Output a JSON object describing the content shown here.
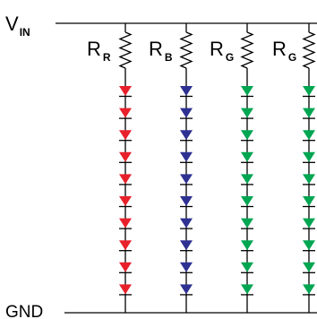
{
  "diagram": {
    "vin_label": {
      "main": "V",
      "sub": "IN"
    },
    "gnd_label": "GND",
    "colors": {
      "wire": "#000000",
      "red": "#e8202a",
      "blue": "#2e3192",
      "green": "#00a651"
    },
    "strings": [
      {
        "resistor_label": {
          "main": "R",
          "sub": "R"
        },
        "led_color": "red",
        "led_count": 10
      },
      {
        "resistor_label": {
          "main": "R",
          "sub": "B"
        },
        "led_color": "blue",
        "led_count": 10
      },
      {
        "resistor_label": {
          "main": "R",
          "sub": "G"
        },
        "led_color": "green",
        "led_count": 10
      },
      {
        "resistor_label": {
          "main": "R",
          "sub": "G"
        },
        "led_color": "green",
        "led_count": 10
      }
    ]
  }
}
